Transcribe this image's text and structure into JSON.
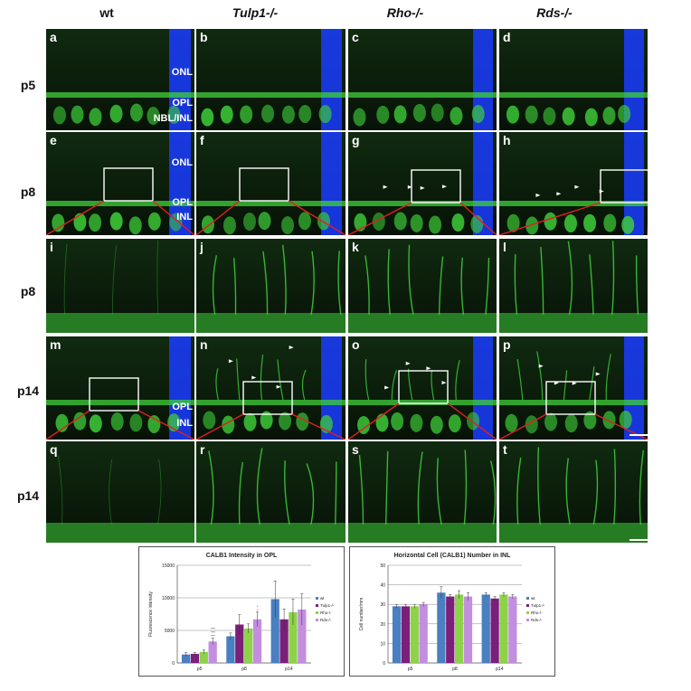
{
  "columns": [
    "wt",
    "Tulp1-/-",
    "Rho-/-",
    "Rds-/-"
  ],
  "rows": [
    {
      "label": "p5"
    },
    {
      "label": "p8"
    },
    {
      "label": "p8"
    },
    {
      "label": "p14"
    },
    {
      "label": "p14"
    }
  ],
  "panel_letters": [
    "a",
    "b",
    "c",
    "d",
    "e",
    "f",
    "g",
    "h",
    "i",
    "j",
    "k",
    "l",
    "m",
    "n",
    "o",
    "p",
    "q",
    "r",
    "s",
    "t"
  ],
  "layer_labels": {
    "row1": [
      "ONL",
      "OPL",
      "NBL/INL"
    ],
    "row2": [
      "ONL",
      "OPL",
      "INL"
    ],
    "row4": [
      "OPL",
      "INL"
    ]
  },
  "colors": {
    "green": "#3fd13a",
    "blue": "#1a3cff",
    "zoom_line": "#e02020",
    "box": "#ffffff"
  },
  "chart_data": [
    {
      "type": "bar",
      "title": "CALB1 Intensity in OPL",
      "ylabel": "Fluorescence intensity",
      "xlabel": "",
      "categories": [
        "p5",
        "p8",
        "p14"
      ],
      "ylim": [
        0,
        15000
      ],
      "yticks": [
        0,
        5000,
        10000,
        15000
      ],
      "legend_position": "right",
      "series": [
        {
          "name": "wt",
          "color": "#4a7fc1",
          "values": [
            1300,
            4100,
            9800
          ],
          "errors": [
            300,
            500,
            2800
          ]
        },
        {
          "name": "Tulp1-/-",
          "color": "#7a1f7a",
          "values": [
            1400,
            5900,
            6700
          ],
          "errors": [
            200,
            1500,
            1600
          ]
        },
        {
          "name": "Rho-/-",
          "color": "#8ed24a",
          "values": [
            1700,
            5300,
            7800
          ],
          "errors": [
            300,
            700,
            2000
          ]
        },
        {
          "name": "Rds-/-",
          "color": "#c38ee0",
          "values": [
            3300,
            6700,
            8200
          ],
          "errors": [
            500,
            1100,
            2400
          ]
        }
      ],
      "annotations": [
        {
          "category": "p5",
          "text": "***"
        },
        {
          "category": "p5",
          "text": "***"
        },
        {
          "category": "p5",
          "text": "***"
        },
        {
          "category": "p8",
          "text": "*"
        },
        {
          "category": "p8",
          "text": "*"
        }
      ]
    },
    {
      "type": "bar",
      "title": "Horizontal Cell (CALB1) Number in INL",
      "ylabel": "Cell number/mm",
      "xlabel": "",
      "categories": [
        "p5",
        "p8",
        "p14"
      ],
      "ylim": [
        0,
        50
      ],
      "yticks": [
        0,
        10,
        20,
        30,
        40,
        50
      ],
      "legend_position": "right",
      "series": [
        {
          "name": "wt",
          "color": "#4a7fc1",
          "values": [
            29,
            36,
            35
          ],
          "errors": [
            1,
            3,
            1
          ]
        },
        {
          "name": "Tulp1-/-",
          "color": "#7a1f7a",
          "values": [
            29,
            34,
            33
          ],
          "errors": [
            1,
            1,
            1
          ]
        },
        {
          "name": "Rho-/-",
          "color": "#8ed24a",
          "values": [
            29,
            35,
            35
          ],
          "errors": [
            1,
            2,
            1
          ]
        },
        {
          "name": "Rds-/-",
          "color": "#c38ee0",
          "values": [
            30,
            34,
            34
          ],
          "errors": [
            1,
            2,
            1
          ]
        }
      ]
    }
  ]
}
